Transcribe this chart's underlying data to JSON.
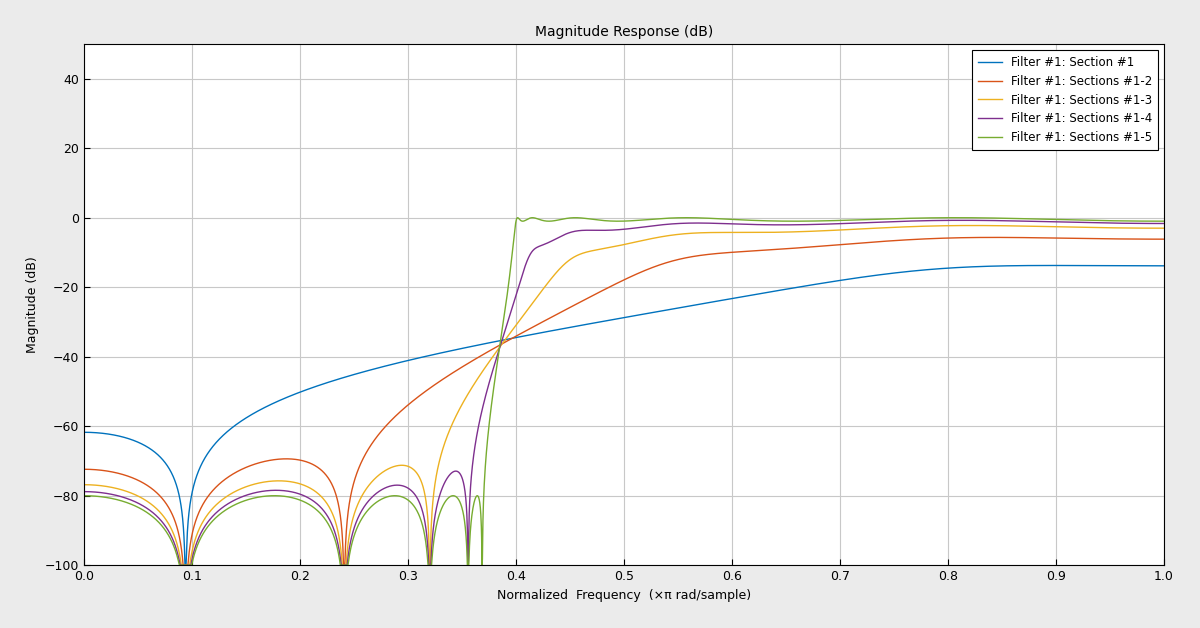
{
  "title": "Magnitude Response (dB)",
  "xlabel": "Normalized  Frequency  (×π rad/sample)",
  "ylabel": "Magnitude (dB)",
  "ylim": [
    -100,
    50
  ],
  "xlim": [
    0,
    1
  ],
  "legend_labels": [
    "Filter #1: Section #1",
    "Filter #1: Sections #1-2",
    "Filter #1: Sections #1-3",
    "Filter #1: Sections #1-4",
    "Filter #1: Sections #1-5"
  ],
  "line_colors": [
    "#0072BD",
    "#D95319",
    "#EDB120",
    "#7E2F8E",
    "#77AC30"
  ],
  "background_color": "#EBEBEB",
  "axes_background": "#FFFFFF",
  "grid_color": "#C8C8C8",
  "title_fontsize": 10,
  "label_fontsize": 9,
  "legend_fontsize": 8.5,
  "tick_fontsize": 9,
  "linewidth": 1.0
}
